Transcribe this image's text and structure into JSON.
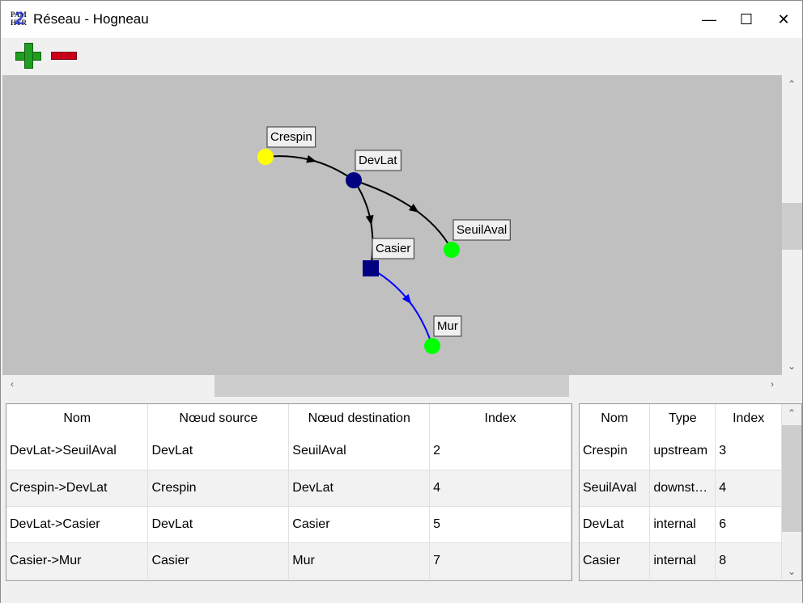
{
  "window": {
    "title": "Réseau - Hogneau",
    "app_icon": "pamhyr2-logo"
  },
  "toolbar": {
    "add": "add-icon",
    "remove": "remove-icon"
  },
  "graph": {
    "nodes": [
      {
        "name": "Crespin",
        "shape": "circle",
        "color": "#ffff00"
      },
      {
        "name": "DevLat",
        "shape": "circle",
        "color": "#000080"
      },
      {
        "name": "SeuilAval",
        "shape": "circle",
        "color": "#00ff00"
      },
      {
        "name": "Casier",
        "shape": "square",
        "color": "#000080"
      },
      {
        "name": "Mur",
        "shape": "circle",
        "color": "#00ff00"
      }
    ],
    "edges": [
      {
        "from": "Crespin",
        "to": "DevLat",
        "color": "#000000"
      },
      {
        "from": "DevLat",
        "to": "SeuilAval",
        "color": "#000000"
      },
      {
        "from": "DevLat",
        "to": "Casier",
        "color": "#000000"
      },
      {
        "from": "Casier",
        "to": "Mur",
        "color": "#0000ff"
      }
    ]
  },
  "edges_table": {
    "headers": [
      "Nom",
      "Nœud source",
      "Nœud destination",
      "Index"
    ],
    "rows": [
      [
        "DevLat->SeuilAval",
        "DevLat",
        "SeuilAval",
        "2"
      ],
      [
        "Crespin->DevLat",
        "Crespin",
        "DevLat",
        "4"
      ],
      [
        "DevLat->Casier",
        "DevLat",
        "Casier",
        "5"
      ],
      [
        "Casier->Mur",
        "Casier",
        "Mur",
        "7"
      ]
    ]
  },
  "nodes_table": {
    "headers": [
      "Nom",
      "Type",
      "Index"
    ],
    "rows": [
      [
        "Crespin",
        "upstream",
        "3"
      ],
      [
        "SeuilAval",
        "downst…",
        "4"
      ],
      [
        "DevLat",
        "internal",
        "6"
      ],
      [
        "Casier",
        "internal",
        "8"
      ]
    ]
  }
}
